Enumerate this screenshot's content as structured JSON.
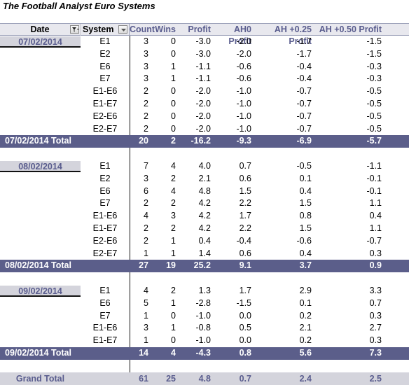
{
  "title": "The Football Analyst Euro Systems",
  "headers": {
    "date": "Date",
    "system": "System",
    "count": "Count",
    "wins": "Wins",
    "profit": "Profit",
    "ah0": "AH0 Profit",
    "ah25": "AH +0.25 Profit",
    "ah50": "AH +0.50 Profit"
  },
  "groups": [
    {
      "date": "07/02/2014",
      "rows": [
        {
          "system": "E1",
          "count": "3",
          "wins": "0",
          "profit": "-3.0",
          "ah0": "-2.0",
          "ah25": "-1.7",
          "ah50": "-1.5"
        },
        {
          "system": "E2",
          "count": "3",
          "wins": "0",
          "profit": "-3.0",
          "ah0": "-2.0",
          "ah25": "-1.7",
          "ah50": "-1.5"
        },
        {
          "system": "E6",
          "count": "3",
          "wins": "1",
          "profit": "-1.1",
          "ah0": "-0.6",
          "ah25": "-0.4",
          "ah50": "-0.3"
        },
        {
          "system": "E7",
          "count": "3",
          "wins": "1",
          "profit": "-1.1",
          "ah0": "-0.6",
          "ah25": "-0.4",
          "ah50": "-0.3"
        },
        {
          "system": "E1-E6",
          "count": "2",
          "wins": "0",
          "profit": "-2.0",
          "ah0": "-1.0",
          "ah25": "-0.7",
          "ah50": "-0.5"
        },
        {
          "system": "E1-E7",
          "count": "2",
          "wins": "0",
          "profit": "-2.0",
          "ah0": "-1.0",
          "ah25": "-0.7",
          "ah50": "-0.5"
        },
        {
          "system": "E2-E6",
          "count": "2",
          "wins": "0",
          "profit": "-2.0",
          "ah0": "-1.0",
          "ah25": "-0.7",
          "ah50": "-0.5"
        },
        {
          "system": "E2-E7",
          "count": "2",
          "wins": "0",
          "profit": "-2.0",
          "ah0": "-1.0",
          "ah25": "-0.7",
          "ah50": "-0.5"
        }
      ],
      "total": {
        "label": "07/02/2014 Total",
        "count": "20",
        "wins": "2",
        "profit": "-16.2",
        "ah0": "-9.3",
        "ah25": "-6.9",
        "ah50": "-5.7"
      }
    },
    {
      "date": "08/02/2014",
      "rows": [
        {
          "system": "E1",
          "count": "7",
          "wins": "4",
          "profit": "4.0",
          "ah0": "0.7",
          "ah25": "-0.5",
          "ah50": "-1.1"
        },
        {
          "system": "E2",
          "count": "3",
          "wins": "2",
          "profit": "2.1",
          "ah0": "0.6",
          "ah25": "0.1",
          "ah50": "-0.1"
        },
        {
          "system": "E6",
          "count": "6",
          "wins": "4",
          "profit": "4.8",
          "ah0": "1.5",
          "ah25": "0.4",
          "ah50": "-0.1"
        },
        {
          "system": "E7",
          "count": "2",
          "wins": "2",
          "profit": "4.2",
          "ah0": "2.2",
          "ah25": "1.5",
          "ah50": "1.1"
        },
        {
          "system": "E1-E6",
          "count": "4",
          "wins": "3",
          "profit": "4.2",
          "ah0": "1.7",
          "ah25": "0.8",
          "ah50": "0.4"
        },
        {
          "system": "E1-E7",
          "count": "2",
          "wins": "2",
          "profit": "4.2",
          "ah0": "2.2",
          "ah25": "1.5",
          "ah50": "1.1"
        },
        {
          "system": "E2-E6",
          "count": "2",
          "wins": "1",
          "profit": "0.4",
          "ah0": "-0.4",
          "ah25": "-0.6",
          "ah50": "-0.7"
        },
        {
          "system": "E2-E7",
          "count": "1",
          "wins": "1",
          "profit": "1.4",
          "ah0": "0.6",
          "ah25": "0.4",
          "ah50": "0.3"
        }
      ],
      "total": {
        "label": "08/02/2014 Total",
        "count": "27",
        "wins": "19",
        "profit": "25.2",
        "ah0": "9.1",
        "ah25": "3.7",
        "ah50": "0.9"
      }
    },
    {
      "date": "09/02/2014",
      "rows": [
        {
          "system": "E1",
          "count": "4",
          "wins": "2",
          "profit": "1.3",
          "ah0": "1.7",
          "ah25": "2.9",
          "ah50": "3.3"
        },
        {
          "system": "E6",
          "count": "5",
          "wins": "1",
          "profit": "-2.8",
          "ah0": "-1.5",
          "ah25": "0.1",
          "ah50": "0.7"
        },
        {
          "system": "E7",
          "count": "1",
          "wins": "0",
          "profit": "-1.0",
          "ah0": "0.0",
          "ah25": "0.2",
          "ah50": "0.3"
        },
        {
          "system": "E1-E6",
          "count": "3",
          "wins": "1",
          "profit": "-0.8",
          "ah0": "0.5",
          "ah25": "2.1",
          "ah50": "2.7"
        },
        {
          "system": "E1-E7",
          "count": "1",
          "wins": "0",
          "profit": "-1.0",
          "ah0": "0.0",
          "ah25": "0.2",
          "ah50": "0.3"
        }
      ],
      "total": {
        "label": "09/02/2014 Total",
        "count": "14",
        "wins": "4",
        "profit": "-4.3",
        "ah0": "0.8",
        "ah25": "5.6",
        "ah50": "7.3"
      }
    }
  ],
  "grand_total": {
    "label": "Grand Total",
    "count": "61",
    "wins": "25",
    "profit": "4.8",
    "ah0": "0.7",
    "ah25": "2.4",
    "ah50": "2.5"
  },
  "colors": {
    "header_text": "#5a5d8e",
    "total_bg": "#5b5e8a",
    "chip_bg": "#d4d4dc"
  }
}
